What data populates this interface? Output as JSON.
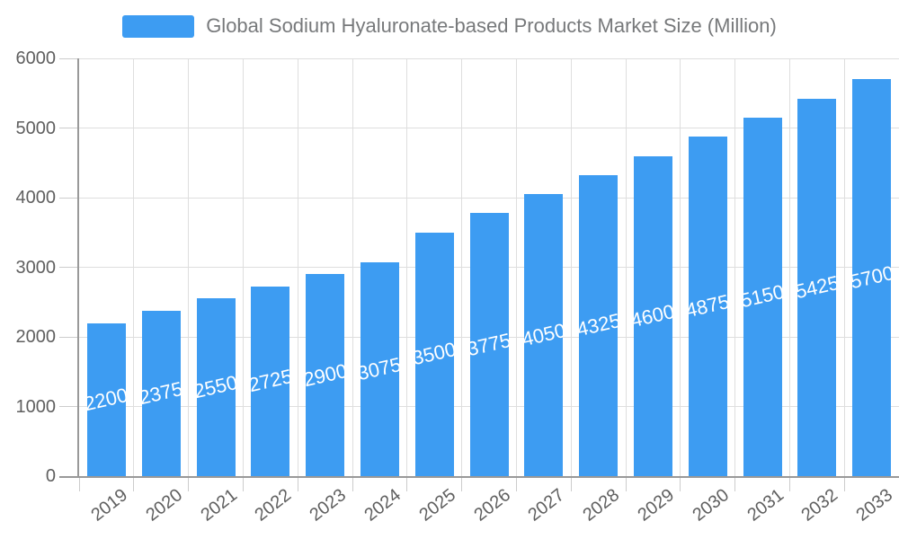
{
  "legend": {
    "label": "Global Sodium Hyaluronate-based Products Market Size (Million)"
  },
  "chart_data": {
    "type": "bar",
    "title": "Global Sodium Hyaluronate-based Products Market Size (Million)",
    "series_name": "Global Sodium Hyaluronate-based Products Market Size (Million)",
    "categories": [
      "2019",
      "2020",
      "2021",
      "2022",
      "2023",
      "2024",
      "2025",
      "2026",
      "2027",
      "2028",
      "2029",
      "2030",
      "2031",
      "2032",
      "2033"
    ],
    "values": [
      2200,
      2375,
      2550,
      2725,
      2900,
      3075,
      3500,
      3775,
      4050,
      4325,
      4600,
      4875,
      5150,
      5425,
      5700
    ],
    "xlabel": "",
    "ylabel": "",
    "ylim": [
      0,
      6000
    ],
    "yticks": [
      0,
      1000,
      2000,
      3000,
      4000,
      5000,
      6000
    ],
    "grid": true,
    "legend_position": "top-center",
    "bar_label_position": "inside-middle",
    "colors": {
      "bar": "#3d9cf2",
      "bar_label": "#ffffff",
      "axis_label": "#5f5f5f",
      "legend_text": "#77797b",
      "grid_line": "#dedede",
      "axis_line": "#999999",
      "tick": "#cccccc",
      "background": "#ffffff"
    }
  }
}
